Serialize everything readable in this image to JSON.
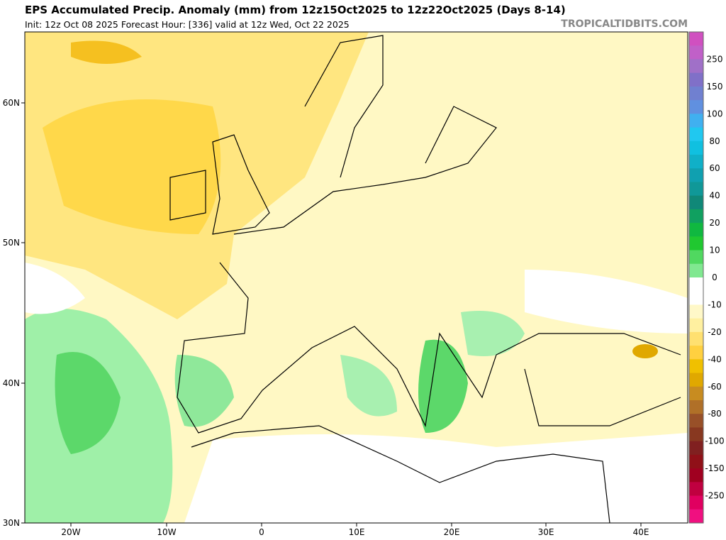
{
  "header": {
    "title": "EPS Accumulated Precip. Anomaly (mm) from 12z15Oct2025 to 12z22Oct2025 (Days 8-14)",
    "subtitle": "Init: 12z Oct 08 2025   Forecast Hour: [336]   valid at 12z Wed, Oct 22 2025",
    "site": "TROPICALTIDBITS.COM"
  },
  "axes": {
    "lat_labels": [
      "60N",
      "50N",
      "40N",
      "30N"
    ],
    "lon_labels": [
      "20W",
      "10W",
      "0",
      "10E",
      "20E",
      "30E",
      "40E"
    ]
  },
  "colorbar": {
    "labels": [
      "250",
      "150",
      "100",
      "80",
      "60",
      "40",
      "20",
      "10",
      "0",
      "-10",
      "-20",
      "-40",
      "-60",
      "-80",
      "-100",
      "-150",
      "-250"
    ],
    "colors": [
      "#d050c0",
      "#c060c8",
      "#a070c8",
      "#8070c8",
      "#7080d0",
      "#6090e0",
      "#40b0f0",
      "#20c8f0",
      "#10c0e0",
      "#10b0c8",
      "#10a0b0",
      "#109898",
      "#108878",
      "#10a060",
      "#10b840",
      "#20c830",
      "#50d860",
      "#80e890",
      "#ffffff",
      "#ffffff",
      "#fff8c8",
      "#fff0a0",
      "#ffe070",
      "#ffd040",
      "#f0c000",
      "#e0a800",
      "#c88c20",
      "#b07028",
      "#985028",
      "#883820",
      "#802020",
      "#901018",
      "#a00020",
      "#c00040",
      "#e00060",
      "#f01080"
    ]
  }
}
